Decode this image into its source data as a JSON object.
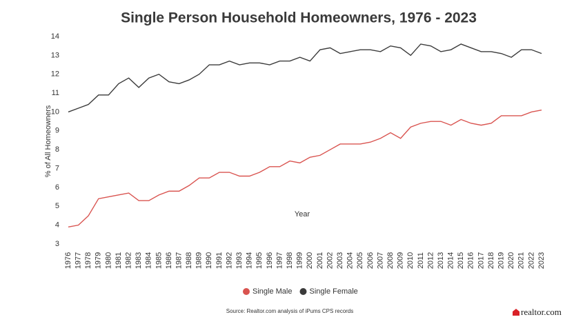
{
  "chart_data": {
    "type": "line",
    "title": "Single Person Household Homeowners, 1976 - 2023",
    "x_label": "Year",
    "y_label": "% of All Homeowners",
    "source": "Source: Realtor.com analysis of iPums CPS records",
    "categories": [
      "1976",
      "1977",
      "1978",
      "1979",
      "1980",
      "1981",
      "1982",
      "1983",
      "1984",
      "1985",
      "1986",
      "1987",
      "1988",
      "1989",
      "1990",
      "1991",
      "1992",
      "1993",
      "1994",
      "1995",
      "1996",
      "1997",
      "1998",
      "1999",
      "2000",
      "2001",
      "2002",
      "2003",
      "2004",
      "2005",
      "2006",
      "2007",
      "2008",
      "2009",
      "2010",
      "2011",
      "2012",
      "2013",
      "2014",
      "2015",
      "2016",
      "2017",
      "2018",
      "2019",
      "2020",
      "2021",
      "2022",
      "2023"
    ],
    "series": [
      {
        "name": "Single Male",
        "color": "#d9534f",
        "values": [
          3.9,
          4.0,
          4.5,
          5.4,
          5.5,
          5.6,
          5.7,
          5.3,
          5.3,
          5.6,
          5.8,
          5.8,
          6.1,
          6.5,
          6.5,
          6.8,
          6.8,
          6.6,
          6.6,
          6.8,
          7.1,
          7.1,
          7.4,
          7.3,
          7.6,
          7.7,
          8.0,
          8.3,
          8.3,
          8.3,
          8.4,
          8.6,
          8.9,
          8.6,
          9.2,
          9.4,
          9.5,
          9.5,
          9.3,
          9.6,
          9.4,
          9.3,
          9.4,
          9.8,
          9.8,
          9.8,
          10.0,
          10.1
        ]
      },
      {
        "name": "Single Female",
        "color": "#3a3a3a",
        "values": [
          10.0,
          10.2,
          10.4,
          10.9,
          10.9,
          11.5,
          11.8,
          11.3,
          11.8,
          12.0,
          11.6,
          11.5,
          11.7,
          12.0,
          12.5,
          12.5,
          12.7,
          12.5,
          12.6,
          12.6,
          12.5,
          12.7,
          12.7,
          12.9,
          12.7,
          13.3,
          13.4,
          13.1,
          13.2,
          13.3,
          13.3,
          13.2,
          13.5,
          13.4,
          13.0,
          13.6,
          13.5,
          13.2,
          13.3,
          13.6,
          13.4,
          13.2,
          13.2,
          13.1,
          12.9,
          13.3,
          13.3,
          13.1
        ]
      }
    ],
    "ylim": [
      3,
      14
    ],
    "yticks": [
      3,
      4,
      5,
      6,
      7,
      8,
      9,
      10,
      11,
      12,
      13,
      14
    ],
    "grid": false
  },
  "logo": "realtor.com"
}
